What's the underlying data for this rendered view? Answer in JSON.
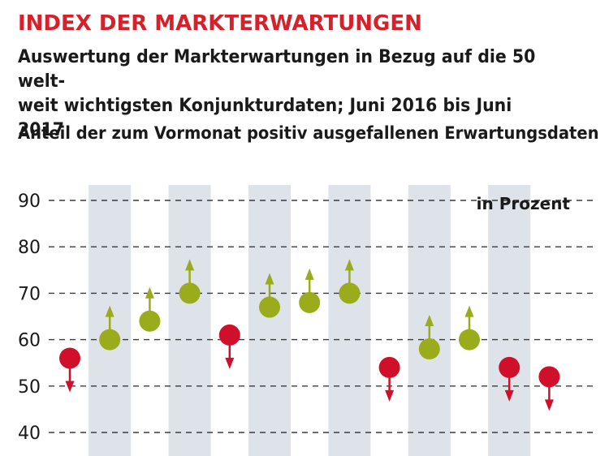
{
  "header": {
    "title": "INDEX DER MARKTERWARTUNGEN",
    "subtitle_line1": "Auswertung der Markterwartungen in Bezug auf die 50 welt-",
    "subtitle_line2": "weit wichtigsten Konjunkturdaten; Juni 2016 bis Juni 2017",
    "measure": "Anteil der zum Vormonat positiv ausgefallenen Erwartungsdaten"
  },
  "colors": {
    "up": "#9aab1c",
    "down": "#d0102a",
    "band": "#dde3e8",
    "grid": "#3a3a3a",
    "title": "#d6202a"
  },
  "chart_data": {
    "type": "scatter",
    "unit_label": "in Prozent",
    "ylim": [
      40,
      90
    ],
    "yticks": [
      90,
      80,
      70,
      60,
      50,
      40
    ],
    "grid": true,
    "points": [
      {
        "value": 56,
        "direction": "down"
      },
      {
        "value": 60,
        "direction": "up"
      },
      {
        "value": 64,
        "direction": "up"
      },
      {
        "value": 70,
        "direction": "up"
      },
      {
        "value": 61,
        "direction": "down"
      },
      {
        "value": 67,
        "direction": "up"
      },
      {
        "value": 68,
        "direction": "up"
      },
      {
        "value": 70,
        "direction": "up"
      },
      {
        "value": 54,
        "direction": "down"
      },
      {
        "value": 58,
        "direction": "up"
      },
      {
        "value": 60,
        "direction": "up"
      },
      {
        "value": 54,
        "direction": "down"
      },
      {
        "value": 52,
        "direction": "down"
      }
    ]
  }
}
